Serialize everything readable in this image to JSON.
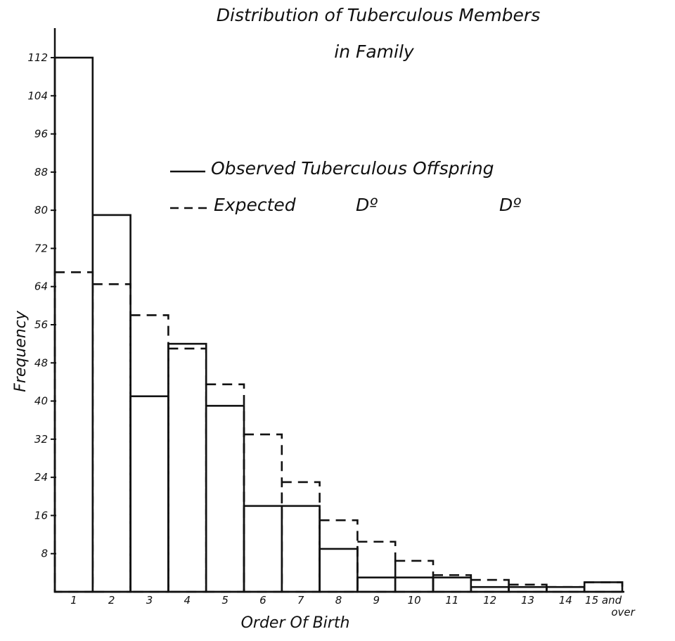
{
  "chart_data": {
    "type": "bar",
    "title_line1": "Distribution of Tuberculous Members",
    "title_line2": "in Family",
    "xlabel": "Order Of Birth",
    "ylabel": "Frequency",
    "categories": [
      "1",
      "2",
      "3",
      "4",
      "5",
      "6",
      "7",
      "8",
      "9",
      "10",
      "11",
      "12",
      "13",
      "14",
      "15 and over"
    ],
    "category_labels_line2": [
      "",
      "",
      "",
      "",
      "",
      "",
      "",
      "",
      "",
      "",
      "",
      "",
      "",
      "",
      "over"
    ],
    "category_labels_line1": [
      "1",
      "2",
      "3",
      "4",
      "5",
      "6",
      "7",
      "8",
      "9",
      "10",
      "11",
      "12",
      "13",
      "14",
      "15 and"
    ],
    "yticks": [
      8,
      16,
      24,
      32,
      40,
      48,
      56,
      64,
      72,
      80,
      88,
      96,
      104,
      112
    ],
    "ytick_labels": [
      "8",
      "16",
      "24",
      "32",
      "40",
      "48",
      "56",
      "64",
      "72",
      "80",
      "88",
      "96",
      "104",
      "112"
    ],
    "ylim": [
      0,
      112
    ],
    "series": [
      {
        "name": "Observed Tuberculous Offspring",
        "style": "solid",
        "values": [
          112,
          79,
          41,
          52,
          39,
          18,
          18,
          9,
          3,
          3,
          3,
          1,
          1,
          1,
          2
        ]
      },
      {
        "name": "Expected Do Do",
        "style": "dashed",
        "values": [
          67,
          64.5,
          58,
          51,
          43.5,
          33,
          23,
          15,
          10.5,
          6.5,
          3.5,
          2.5,
          1.5,
          1,
          2
        ]
      }
    ],
    "legend": {
      "observed_label": "Observed Tuberculous Offspring",
      "expected_label": "Expected",
      "ditto_1": "Dº",
      "ditto_2": "Dº",
      "placement": "upper-center"
    },
    "grid": false
  }
}
